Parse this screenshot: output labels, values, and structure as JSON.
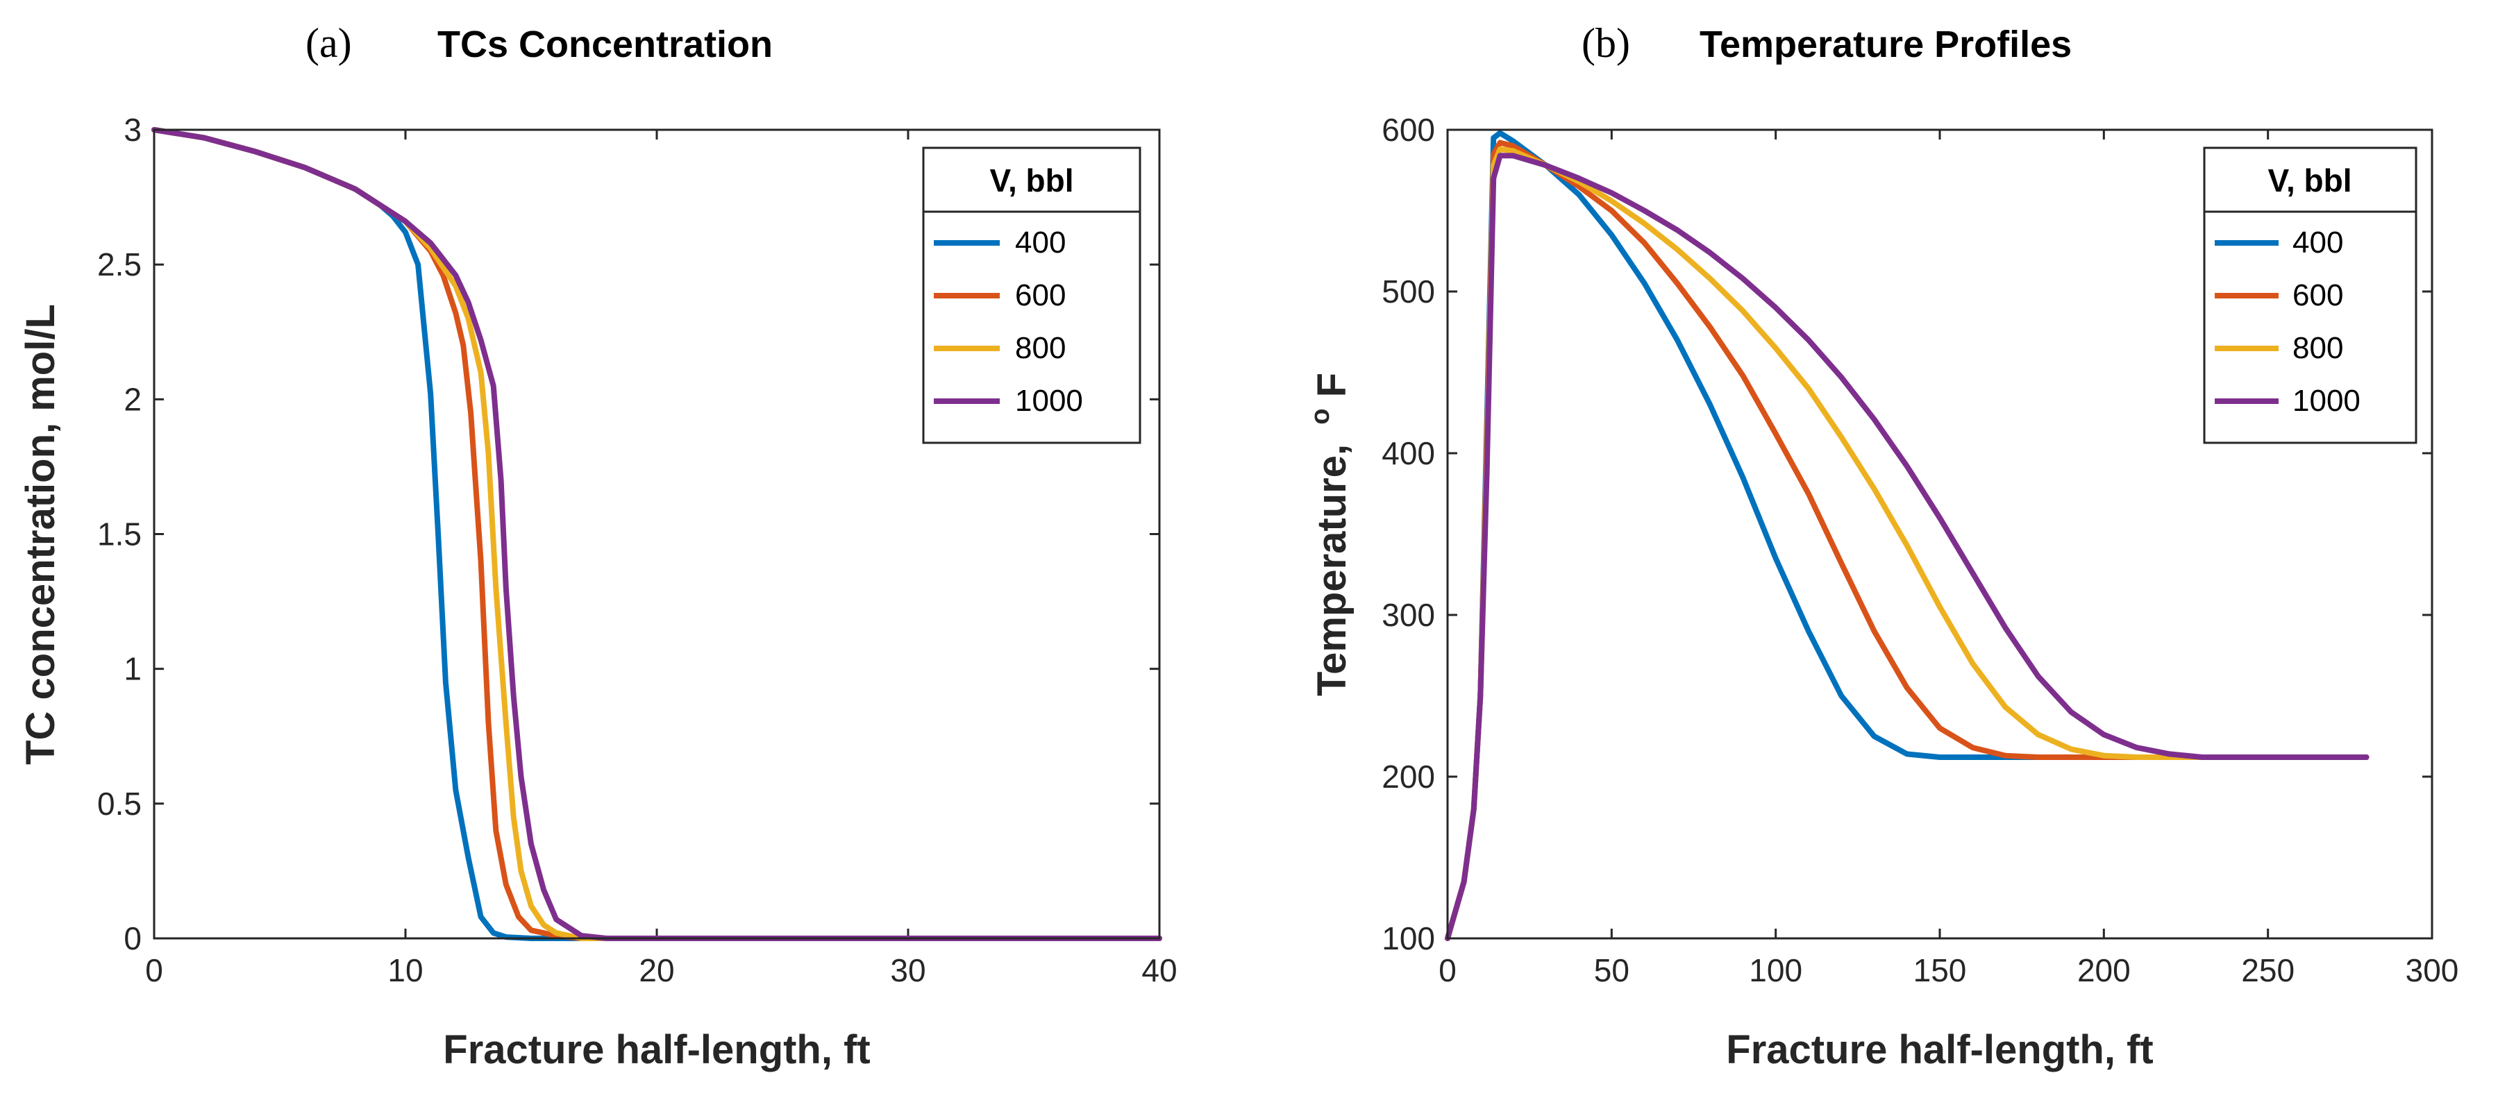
{
  "chart_data": [
    {
      "type": "line",
      "panel": "(a)",
      "title": "TCs Concentration",
      "xlabel": "Fracture half-length, ft",
      "ylabel": "TC concentration, mol/L",
      "xlim": [
        0,
        40
      ],
      "ylim": [
        0,
        3
      ],
      "xticks": [
        0,
        10,
        20,
        30,
        40
      ],
      "yticks": [
        0,
        0.5,
        1,
        1.5,
        2,
        2.5,
        3
      ],
      "ytick_labels": [
        "0",
        "0.5",
        "1",
        "1.5",
        "2",
        "2.5",
        "3"
      ],
      "legend": {
        "title": "V, bbl",
        "position": "top-right"
      },
      "series": [
        {
          "name": "400",
          "color": "#0072BD",
          "x": [
            0,
            2,
            4,
            6,
            8,
            9,
            9.5,
            10,
            10.5,
            11,
            11.3,
            11.6,
            12,
            12.5,
            13,
            13.5,
            14,
            15,
            16,
            40
          ],
          "y": [
            3,
            2.97,
            2.92,
            2.86,
            2.78,
            2.72,
            2.68,
            2.62,
            2.5,
            2.02,
            1.5,
            0.95,
            0.55,
            0.3,
            0.08,
            0.02,
            0.005,
            0,
            0,
            0
          ]
        },
        {
          "name": "600",
          "color": "#D95319",
          "x": [
            0,
            2,
            4,
            6,
            8,
            10,
            11,
            11.5,
            12,
            12.3,
            12.6,
            13,
            13.3,
            13.6,
            14,
            14.5,
            15,
            16,
            17,
            40
          ],
          "y": [
            3,
            2.97,
            2.92,
            2.86,
            2.78,
            2.66,
            2.55,
            2.46,
            2.32,
            2.2,
            1.95,
            1.4,
            0.8,
            0.4,
            0.2,
            0.08,
            0.03,
            0.01,
            0,
            0
          ]
        },
        {
          "name": "800",
          "color": "#EDB120",
          "x": [
            0,
            2,
            4,
            6,
            8,
            10,
            11,
            12,
            12.5,
            13,
            13.3,
            13.6,
            14,
            14.3,
            14.6,
            15,
            15.5,
            16,
            17,
            40
          ],
          "y": [
            3,
            2.97,
            2.92,
            2.86,
            2.78,
            2.66,
            2.56,
            2.42,
            2.3,
            2.1,
            1.8,
            1.3,
            0.8,
            0.45,
            0.25,
            0.12,
            0.05,
            0.02,
            0,
            0
          ]
        },
        {
          "name": "1000",
          "color": "#7E2F8E",
          "x": [
            0,
            2,
            4,
            6,
            8,
            10,
            11,
            12,
            12.5,
            13,
            13.5,
            13.8,
            14,
            14.3,
            14.6,
            15,
            15.5,
            16,
            17,
            18,
            40
          ],
          "y": [
            3,
            2.97,
            2.92,
            2.86,
            2.78,
            2.66,
            2.58,
            2.46,
            2.36,
            2.22,
            2.05,
            1.7,
            1.3,
            0.9,
            0.6,
            0.35,
            0.18,
            0.07,
            0.01,
            0,
            0
          ]
        }
      ]
    },
    {
      "type": "line",
      "panel": "(b)",
      "title": "Temperature Profiles",
      "xlabel": "Fracture half-length, ft",
      "ylabel": "Temperature,",
      "ylabel_unit_sup": "o",
      "ylabel_unit": "F",
      "xlim": [
        0,
        300
      ],
      "ylim": [
        100,
        600
      ],
      "xticks": [
        0,
        50,
        100,
        150,
        200,
        250,
        300
      ],
      "yticks": [
        100,
        200,
        300,
        400,
        500,
        600
      ],
      "legend": {
        "title": "V, bbl",
        "position": "top-right"
      },
      "series": [
        {
          "name": "400",
          "color": "#0072BD",
          "x": [
            0,
            5,
            8,
            10,
            12,
            14,
            16,
            20,
            30,
            40,
            50,
            60,
            70,
            80,
            90,
            100,
            110,
            120,
            130,
            140,
            150,
            160,
            200,
            250,
            280
          ],
          "y": [
            100,
            135,
            180,
            250,
            420,
            595,
            598,
            593,
            578,
            560,
            535,
            505,
            470,
            430,
            385,
            335,
            290,
            250,
            225,
            214,
            212,
            212,
            212,
            212,
            212
          ]
        },
        {
          "name": "600",
          "color": "#D95319",
          "x": [
            0,
            5,
            8,
            10,
            12,
            14,
            16,
            20,
            30,
            40,
            50,
            60,
            70,
            80,
            90,
            100,
            110,
            120,
            130,
            140,
            150,
            160,
            170,
            180,
            200,
            250,
            280
          ],
          "y": [
            100,
            135,
            180,
            250,
            410,
            585,
            592,
            590,
            578,
            565,
            550,
            530,
            505,
            478,
            448,
            412,
            375,
            332,
            290,
            255,
            230,
            218,
            213,
            212,
            212,
            212,
            212
          ]
        },
        {
          "name": "800",
          "color": "#EDB120",
          "x": [
            0,
            5,
            8,
            10,
            12,
            14,
            16,
            20,
            30,
            40,
            50,
            60,
            70,
            80,
            90,
            100,
            110,
            120,
            130,
            140,
            150,
            160,
            170,
            180,
            190,
            200,
            210,
            250,
            280
          ],
          "y": [
            100,
            135,
            180,
            250,
            400,
            578,
            588,
            587,
            578,
            568,
            556,
            542,
            526,
            508,
            488,
            465,
            440,
            410,
            378,
            343,
            305,
            270,
            243,
            226,
            217,
            213,
            212,
            212,
            212
          ]
        },
        {
          "name": "1000",
          "color": "#7E2F8E",
          "x": [
            0,
            5,
            8,
            10,
            12,
            14,
            16,
            20,
            30,
            40,
            50,
            60,
            70,
            80,
            90,
            100,
            110,
            120,
            130,
            140,
            150,
            160,
            170,
            180,
            190,
            200,
            210,
            220,
            230,
            250,
            280
          ],
          "y": [
            100,
            135,
            180,
            250,
            390,
            570,
            584,
            584,
            578,
            570,
            561,
            550,
            538,
            524,
            508,
            490,
            470,
            447,
            421,
            392,
            360,
            326,
            292,
            262,
            240,
            226,
            218,
            214,
            212,
            212,
            212
          ]
        }
      ]
    }
  ]
}
